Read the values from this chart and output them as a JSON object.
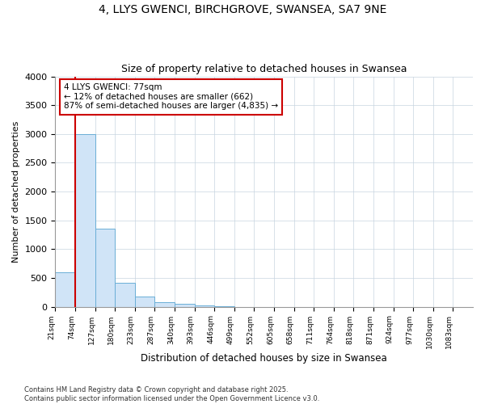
{
  "title1": "4, LLYS GWENCI, BIRCHGROVE, SWANSEA, SA7 9NE",
  "title2": "Size of property relative to detached houses in Swansea",
  "xlabel": "Distribution of detached houses by size in Swansea",
  "ylabel": "Number of detached properties",
  "bins": [
    "21sqm",
    "74sqm",
    "127sqm",
    "180sqm",
    "233sqm",
    "287sqm",
    "340sqm",
    "393sqm",
    "446sqm",
    "499sqm",
    "552sqm",
    "605sqm",
    "658sqm",
    "711sqm",
    "764sqm",
    "818sqm",
    "871sqm",
    "924sqm",
    "977sqm",
    "1030sqm",
    "1083sqm"
  ],
  "values": [
    600,
    3000,
    1350,
    420,
    175,
    80,
    50,
    25,
    5,
    0,
    0,
    0,
    0,
    0,
    0,
    0,
    0,
    0,
    0,
    0,
    0
  ],
  "bar_color": "#d0e4f7",
  "bar_edge_color": "#6aaed6",
  "grid_color": "#c8d4e0",
  "property_marker_bin": 1,
  "property_marker_label": "4 LLYS GWENCI: 77sqm",
  "annotation_line1": "4 LLYS GWENCI: 77sqm",
  "annotation_line2": "← 12% of detached houses are smaller (662)",
  "annotation_line3": "87% of semi-detached houses are larger (4,835) →",
  "annotation_box_color": "#ffffff",
  "annotation_box_edge_color": "#cc0000",
  "marker_line_color": "#cc0000",
  "ylim": [
    0,
    4000
  ],
  "yticks": [
    0,
    500,
    1000,
    1500,
    2000,
    2500,
    3000,
    3500,
    4000
  ],
  "footer_text": "Contains HM Land Registry data © Crown copyright and database right 2025.\nContains public sector information licensed under the Open Government Licence v3.0.",
  "bg_color": "#ffffff",
  "plot_bg_color": "#ffffff"
}
